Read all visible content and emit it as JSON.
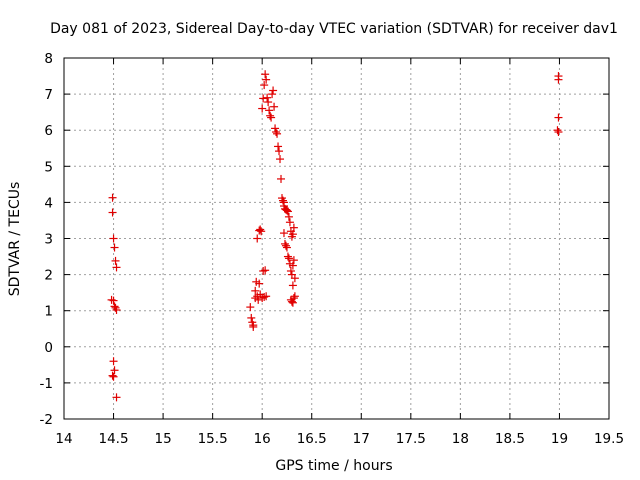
{
  "chart_data": {
    "type": "scatter",
    "title": "Day 081 of 2023, Sidereal Day-to-day VTEC variation (SDTVAR) for receiver dav1",
    "xlabel": "GPS time / hours",
    "ylabel": "SDTVAR / TECUs",
    "xlim": [
      14,
      19.5
    ],
    "ylim": [
      -2,
      8
    ],
    "x_ticks": [
      "14",
      "14.5",
      "15",
      "15.5",
      "16",
      "16.5",
      "17",
      "17.5",
      "18",
      "18.5",
      "19",
      "19.5"
    ],
    "y_ticks": [
      "-2",
      "-1",
      "0",
      "1",
      "2",
      "3",
      "4",
      "5",
      "6",
      "7",
      "8"
    ],
    "grid": true,
    "marker": "+",
    "series_color": "#e00000",
    "series": [
      {
        "name": "SDTVAR",
        "points": [
          [
            14.49,
            4.13
          ],
          [
            14.49,
            3.72
          ],
          [
            14.5,
            3.0
          ],
          [
            14.51,
            2.75
          ],
          [
            14.52,
            2.38
          ],
          [
            14.53,
            2.2
          ],
          [
            14.48,
            1.3
          ],
          [
            14.5,
            1.28
          ],
          [
            14.51,
            1.12
          ],
          [
            14.52,
            1.08
          ],
          [
            14.53,
            1.02
          ],
          [
            14.5,
            -0.4
          ],
          [
            14.51,
            -0.65
          ],
          [
            14.49,
            -0.8
          ],
          [
            14.5,
            -0.83
          ],
          [
            14.53,
            -1.4
          ],
          [
            15.88,
            1.1
          ],
          [
            15.89,
            0.8
          ],
          [
            15.9,
            0.68
          ],
          [
            15.91,
            0.6
          ],
          [
            15.91,
            0.55
          ],
          [
            15.93,
            1.55
          ],
          [
            15.93,
            1.35
          ],
          [
            15.95,
            1.4
          ],
          [
            15.96,
            1.3
          ],
          [
            15.97,
            1.75
          ],
          [
            15.98,
            1.45
          ],
          [
            15.94,
            1.8
          ],
          [
            15.95,
            3.0
          ],
          [
            15.97,
            3.22
          ],
          [
            15.98,
            3.25
          ],
          [
            15.99,
            3.2
          ],
          [
            16.0,
            1.35
          ],
          [
            16.01,
            2.1
          ],
          [
            16.02,
            1.38
          ],
          [
            16.03,
            2.12
          ],
          [
            16.04,
            1.4
          ],
          [
            16.0,
            6.6
          ],
          [
            16.01,
            6.88
          ],
          [
            16.02,
            7.25
          ],
          [
            16.03,
            7.55
          ],
          [
            16.04,
            7.4
          ],
          [
            16.05,
            6.9
          ],
          [
            16.06,
            6.78
          ],
          [
            16.07,
            6.55
          ],
          [
            16.08,
            6.4
          ],
          [
            16.09,
            6.35
          ],
          [
            16.1,
            7.0
          ],
          [
            16.11,
            7.1
          ],
          [
            16.12,
            6.65
          ],
          [
            16.13,
            6.05
          ],
          [
            16.14,
            5.95
          ],
          [
            16.15,
            5.9
          ],
          [
            16.16,
            5.55
          ],
          [
            16.17,
            5.42
          ],
          [
            16.18,
            5.2
          ],
          [
            16.19,
            4.65
          ],
          [
            16.2,
            4.12
          ],
          [
            16.21,
            4.05
          ],
          [
            16.22,
            4.0
          ],
          [
            16.22,
            3.9
          ],
          [
            16.23,
            3.82
          ],
          [
            16.24,
            3.8
          ],
          [
            16.25,
            3.78
          ],
          [
            16.26,
            3.75
          ],
          [
            16.27,
            3.6
          ],
          [
            16.28,
            3.45
          ],
          [
            16.29,
            3.2
          ],
          [
            16.3,
            3.05
          ],
          [
            16.31,
            3.12
          ],
          [
            16.32,
            3.3
          ],
          [
            16.22,
            3.15
          ],
          [
            16.23,
            2.85
          ],
          [
            16.24,
            2.8
          ],
          [
            16.25,
            2.75
          ],
          [
            16.26,
            2.5
          ],
          [
            16.27,
            2.45
          ],
          [
            16.28,
            2.3
          ],
          [
            16.29,
            2.1
          ],
          [
            16.3,
            2.0
          ],
          [
            16.31,
            2.25
          ],
          [
            16.32,
            2.4
          ],
          [
            16.33,
            1.9
          ],
          [
            16.31,
            1.7
          ],
          [
            16.29,
            1.3
          ],
          [
            16.3,
            1.25
          ],
          [
            16.31,
            1.22
          ],
          [
            16.32,
            1.35
          ],
          [
            16.33,
            1.4
          ],
          [
            18.99,
            7.5
          ],
          [
            18.99,
            7.4
          ],
          [
            18.99,
            6.35
          ],
          [
            18.98,
            6.0
          ],
          [
            18.99,
            5.95
          ]
        ]
      }
    ]
  }
}
